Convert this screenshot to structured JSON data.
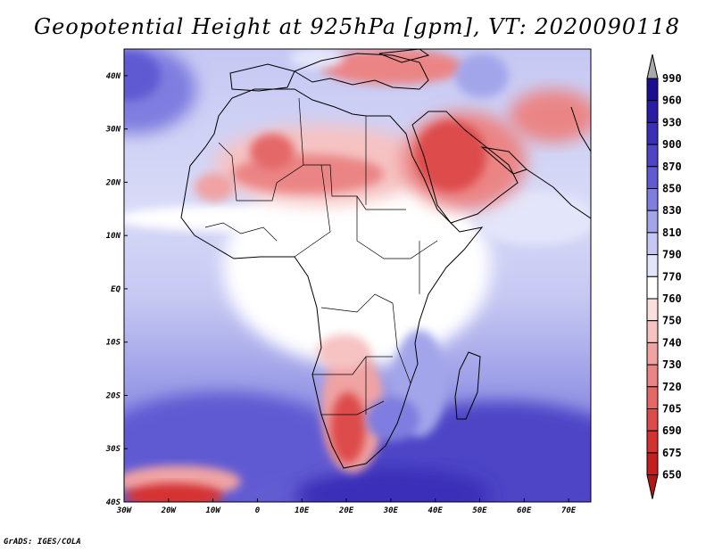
{
  "title": "Geopotential Height at 925hPa [gpm], VT: 2020090118",
  "credit": "GrADS: IGES/COLA",
  "map": {
    "lon_range": [
      -30,
      75
    ],
    "lat_range": [
      -40,
      45
    ],
    "lon_ticks": [
      {
        "lon": -30,
        "label": "30W"
      },
      {
        "lon": -20,
        "label": "20W"
      },
      {
        "lon": -10,
        "label": "10W"
      },
      {
        "lon": 0,
        "label": "0"
      },
      {
        "lon": 10,
        "label": "10E"
      },
      {
        "lon": 20,
        "label": "20E"
      },
      {
        "lon": 30,
        "label": "30E"
      },
      {
        "lon": 40,
        "label": "40E"
      },
      {
        "lon": 50,
        "label": "50E"
      },
      {
        "lon": 60,
        "label": "60E"
      },
      {
        "lon": 70,
        "label": "70E"
      }
    ],
    "lat_ticks": [
      {
        "lat": 40,
        "label": "40N"
      },
      {
        "lat": 30,
        "label": "30N"
      },
      {
        "lat": 20,
        "label": "20N"
      },
      {
        "lat": 10,
        "label": "10N"
      },
      {
        "lat": 0,
        "label": "EQ"
      },
      {
        "lat": -10,
        "label": "10S"
      },
      {
        "lat": -20,
        "label": "20S"
      },
      {
        "lat": -30,
        "label": "30S"
      },
      {
        "lat": -40,
        "label": "40S"
      }
    ]
  },
  "colorbar": {
    "levels": [
      {
        "label": "990",
        "color": "#a9a9a9"
      },
      {
        "label": "960",
        "color": "#1c0f8f"
      },
      {
        "label": "930",
        "color": "#2a1ca6"
      },
      {
        "label": "900",
        "color": "#3b2fb8"
      },
      {
        "label": "870",
        "color": "#4d45c6"
      },
      {
        "label": "850",
        "color": "#615ad2"
      },
      {
        "label": "830",
        "color": "#7f7ddf"
      },
      {
        "label": "810",
        "color": "#a3a5ea"
      },
      {
        "label": "790",
        "color": "#c6c8f3"
      },
      {
        "label": "770",
        "color": "#e3e5fa"
      },
      {
        "label": "760",
        "color": "#ffffff"
      },
      {
        "label": "750",
        "color": "#fbdede"
      },
      {
        "label": "740",
        "color": "#f6c2c2"
      },
      {
        "label": "730",
        "color": "#f0a3a3"
      },
      {
        "label": "720",
        "color": "#eb8585"
      },
      {
        "label": "705",
        "color": "#e46868"
      },
      {
        "label": "690",
        "color": "#dd4c4c"
      },
      {
        "label": "675",
        "color": "#d53131"
      },
      {
        "label": "650",
        "color": "#c41e1e"
      }
    ],
    "bottom_color": "#b01818"
  }
}
